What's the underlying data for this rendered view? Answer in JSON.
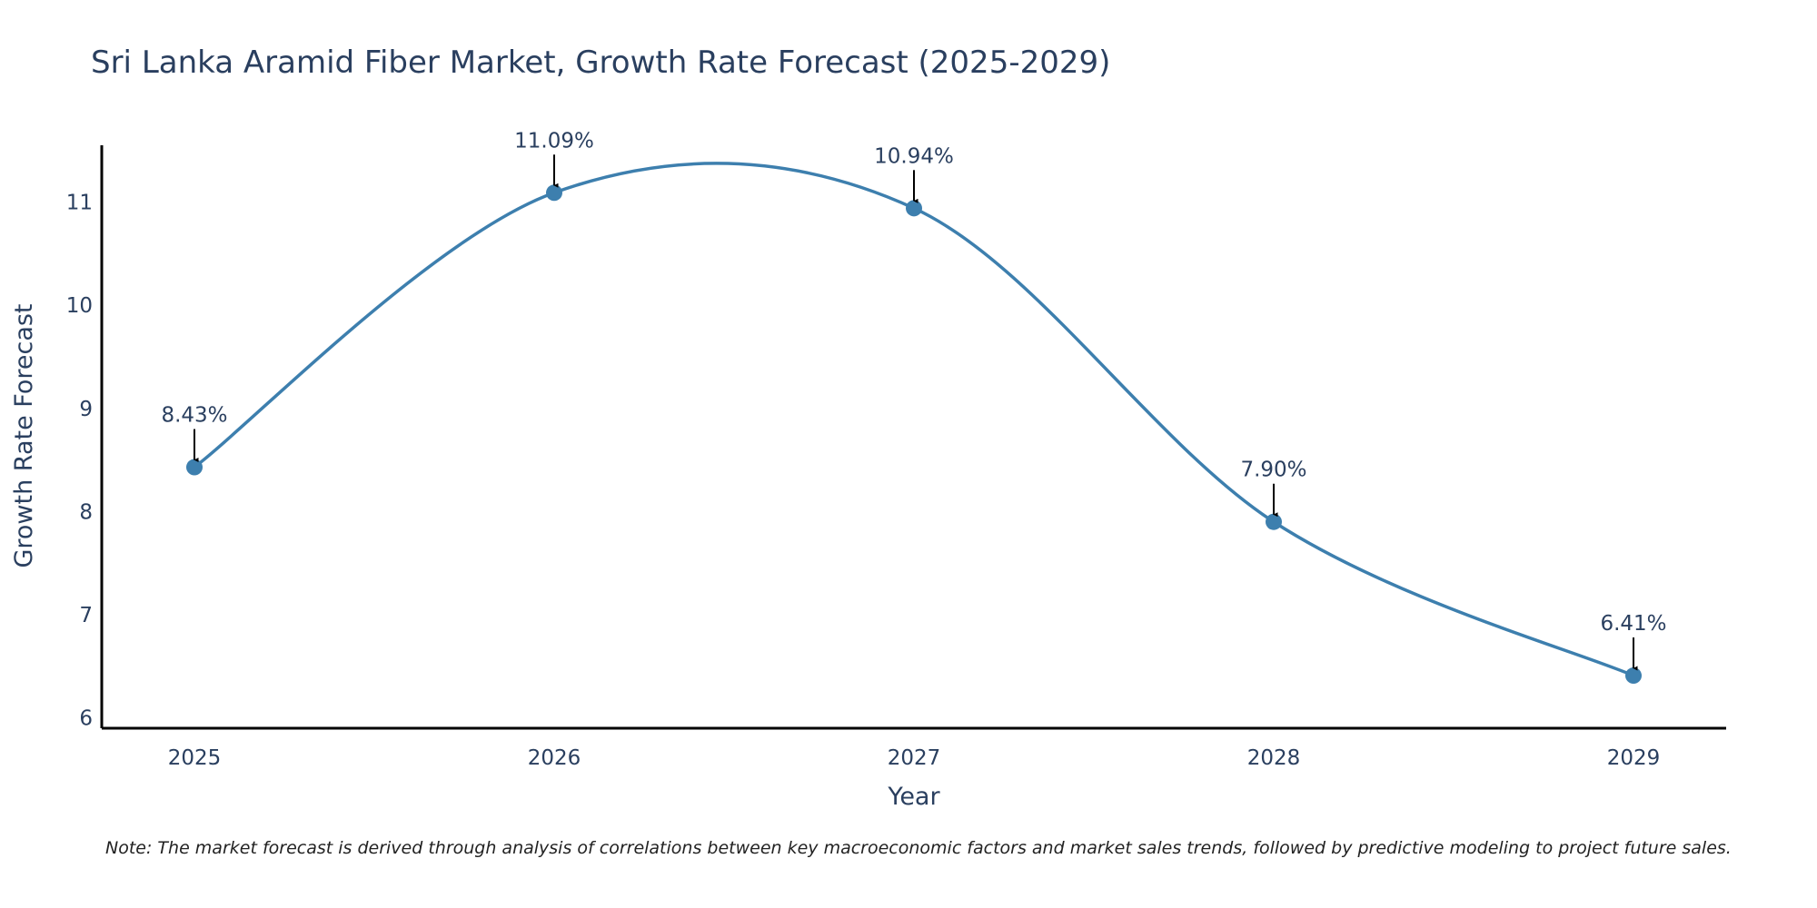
{
  "chart_data": {
    "type": "line",
    "title": "Sri Lanka Aramid Fiber Market, Growth Rate Forecast (2025-2029)",
    "xlabel": "Year",
    "ylabel": "Growth Rate Forecast",
    "categories": [
      "2025",
      "2026",
      "2027",
      "2028",
      "2029"
    ],
    "series": [
      {
        "name": "Growth Rate Forecast",
        "values": [
          8.43,
          11.09,
          10.94,
          7.9,
          6.41
        ],
        "labels": [
          "8.43%",
          "11.09%",
          "10.94%",
          "7.90%",
          "6.41%"
        ],
        "color": "#3d7fae"
      }
    ],
    "ylim": [
      5.9,
      11.55
    ],
    "yticks": [
      6,
      7,
      8,
      9,
      10,
      11
    ],
    "grid": false,
    "line_shape": "spline",
    "marker_color": "#3d7fae",
    "arrow_color": "#000000",
    "note": "Note: The market forecast is derived through analysis of correlations between key macroeconomic factors and market sales trends, followed by predictive modeling to project future sales."
  }
}
